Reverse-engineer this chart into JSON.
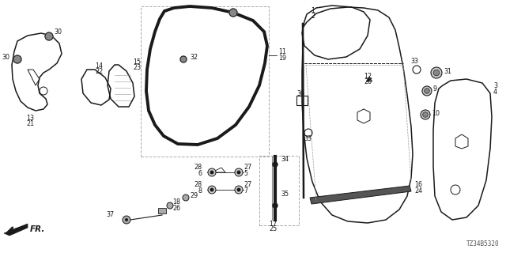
{
  "bg_color": "#ffffff",
  "diagram_code": "TZ34B5320",
  "dark": "#1a1a1a",
  "gray": "#666666",
  "mid": "#999999"
}
